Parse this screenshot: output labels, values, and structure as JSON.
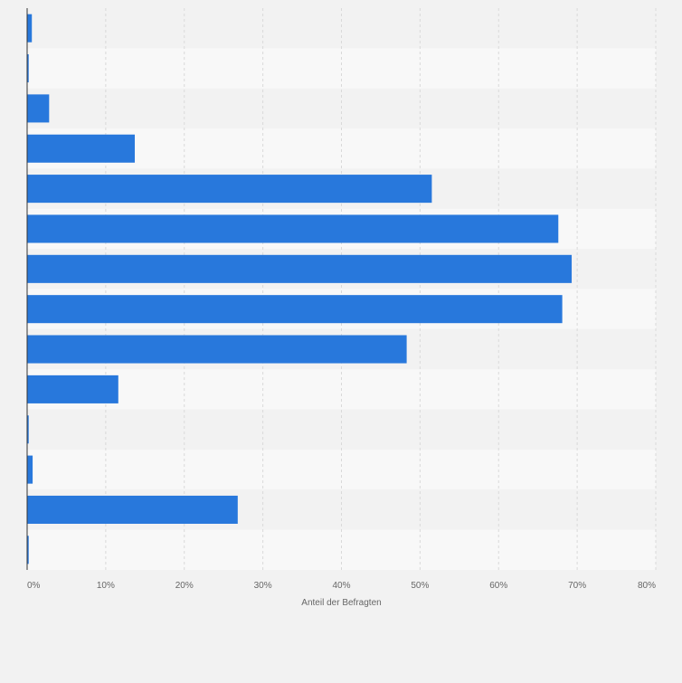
{
  "chart_data": {
    "type": "bar",
    "orientation": "horizontal",
    "title": "",
    "xlabel": "Anteil der Befragten",
    "ylabel": "",
    "xlim": [
      0,
      80
    ],
    "x_ticks": [
      "0%",
      "10%",
      "20%",
      "30%",
      "40%",
      "50%",
      "60%",
      "70%",
      "80%"
    ],
    "categories": [
      "",
      "",
      "",
      "",
      "",
      "",
      "",
      "",
      "",
      "",
      "",
      "",
      "",
      ""
    ],
    "values": [
      0.6,
      0.2,
      2.8,
      13.7,
      51.5,
      67.6,
      69.3,
      68.1,
      48.3,
      11.6,
      0.2,
      0.7,
      26.8,
      0.2
    ],
    "grid": "vertical dashed",
    "legend": "none"
  },
  "colors": {
    "bar": "#2878dc",
    "background": "#f2f2f2",
    "band_light": "#f8f8f8",
    "band_dark": "#f2f2f2",
    "grid": "#d9d9d9",
    "axis": "#333333",
    "tick_text": "#666666"
  }
}
